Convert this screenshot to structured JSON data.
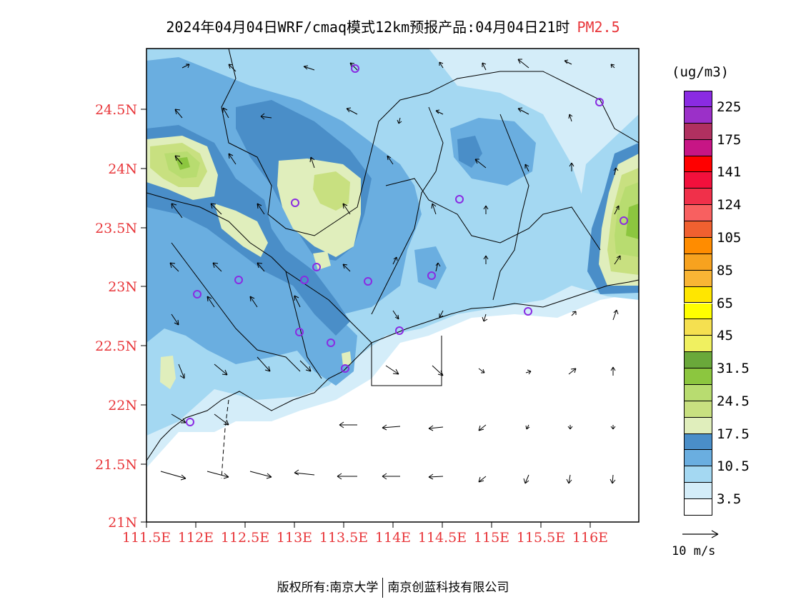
{
  "title": {
    "main": "2024年04月04日WRF/cmaq模式12km预报产品:04月04日21时",
    "pollutant": "PM2.5"
  },
  "axes": {
    "lat_labels": [
      "24.5N",
      "24N",
      "23.5N",
      "23N",
      "22.5N",
      "22N",
      "21.5N",
      "21N"
    ],
    "lon_labels": [
      "111.5E",
      "112E",
      "112.5E",
      "113E",
      "113.5E",
      "114E",
      "114.5E",
      "115E",
      "115.5E",
      "116E"
    ]
  },
  "colorbar": {
    "unit": "(ug/m3)",
    "levels": [
      {
        "color": "#8a2be2"
      },
      {
        "color": "#9b30c8"
      },
      {
        "color": "#b03060"
      },
      {
        "color": "#c71585"
      },
      {
        "color": "#ff0000"
      },
      {
        "color": "#f2103c"
      },
      {
        "color": "#f0304a"
      },
      {
        "color": "#f86060"
      },
      {
        "color": "#f06030"
      },
      {
        "color": "#ff8c00"
      },
      {
        "color": "#f7a21f"
      },
      {
        "color": "#f9b535"
      },
      {
        "color": "#ffe600"
      },
      {
        "color": "#ffff00"
      },
      {
        "color": "#f5e050"
      },
      {
        "color": "#f0f060"
      },
      {
        "color": "#6aa83a"
      },
      {
        "color": "#8cc63f"
      },
      {
        "color": "#b8dc70"
      },
      {
        "color": "#c8e080"
      },
      {
        "color": "#e0eebc"
      },
      {
        "color": "#4a8ec8"
      },
      {
        "color": "#6aaee0"
      },
      {
        "color": "#a4d8f2"
      },
      {
        "color": "#d4edf9"
      },
      {
        "color": "#ffffff"
      }
    ],
    "labels": [
      "225",
      "175",
      "141",
      "124",
      "105",
      "85",
      "65",
      "45",
      "31.5",
      "24.5",
      "17.5",
      "10.5",
      "3.5"
    ]
  },
  "wind_reference": {
    "label": "10 m/s"
  },
  "copyright": {
    "left": "版权所有:南京大学",
    "right": "南京创蓝科技有限公司"
  },
  "stations": 22
}
